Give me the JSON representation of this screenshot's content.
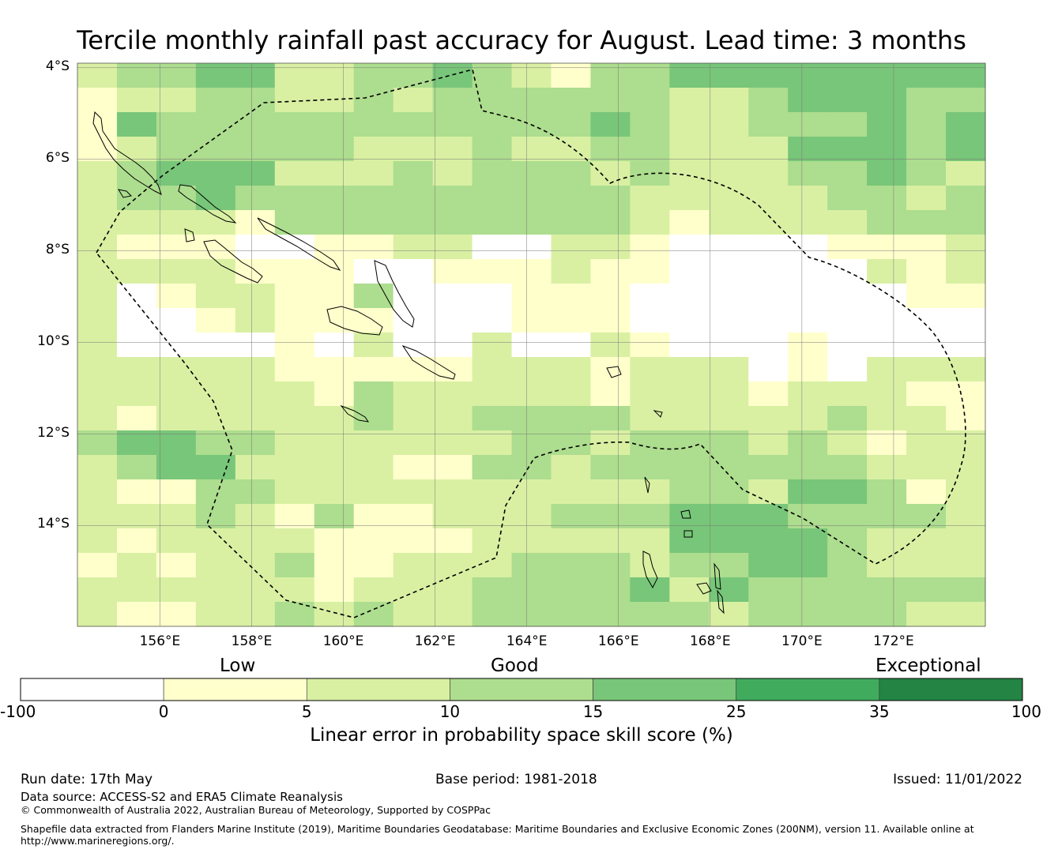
{
  "title": "Tercile monthly rainfall past accuracy for August. Lead time: 3 months",
  "map": {
    "lat_range": [
      -16.2,
      -3.9
    ],
    "lon_range": [
      154.2,
      174.0
    ],
    "lat_labels": [
      "4°S",
      "6°S",
      "8°S",
      "10°S",
      "12°S",
      "14°S"
    ],
    "lon_labels": [
      "156°E",
      "158°E",
      "160°E",
      "162°E",
      "164°E",
      "166°E",
      "168°E",
      "170°E",
      "172°E"
    ],
    "grid": true,
    "category_colors": [
      "#ffffff",
      "#ffffcc",
      "#d9f0a3",
      "#addd8e",
      "#78c679",
      "#41ab5d",
      "#238443"
    ],
    "legend_note": "grid cell value = colour category index (0=-100..0, 1=0..5, 2=5..10, 3=10..15, 4=15..25, 5=25..35, 6=35..100)",
    "skill_grid": [
      "23344223343213344444444",
      "12233223233333322344433",
      "14333333333334322333434",
      "12333332223223322244434",
      "23444222323332322233432",
      "23343333333333222223323",
      "22221333333333212222333",
      "21110011220022100001112",
      "22221110011121100000212",
      "20122113000111000000011",
      "20012111000111000000000",
      "20000102002002100010000",
      "22222111112221222010222",
      "22222213222221222122211",
      "21222223223333222223221",
      "34433222222332333232122",
      "23442222113323333333222",
      "21133222222222233244312",
      "22232131122233344433332",
      "21222211112222244443222",
      "12122311222333233443222",
      "22222212223333424333333",
      "21122323223333332333322"
    ],
    "islands": [
      "solomon-islands-choiseul",
      "solomon-islands-santa-isabel",
      "solomon-islands-new-georgia",
      "solomon-islands-malaita",
      "solomon-islands-guadalcanal",
      "solomon-islands-makira",
      "bougainville-island",
      "rennell-island",
      "santa-cruz-islands",
      "vanuatu-banks-islands",
      "vanuatu-espiritu-santo",
      "vanuatu-malekula"
    ],
    "eez_boundary": "solomon-islands-eez-dashed"
  },
  "legend": {
    "categories": [
      "Low",
      "Good",
      "Exceptional"
    ],
    "ticks": [
      "-100",
      "0",
      "5",
      "10",
      "15",
      "25",
      "35",
      "100"
    ],
    "colors": [
      "#ffffff",
      "#ffffcc",
      "#d9f0a3",
      "#addd8e",
      "#78c679",
      "#41ab5d",
      "#238443"
    ],
    "title": "Linear error in probability space skill score (%)"
  },
  "footer": {
    "run_date": "Run date: 17th May",
    "base_period": "Base period: 1981-2018",
    "issued": "Issued: 11/01/2022",
    "data_source": "Data source: ACCESS-S2 and ERA5 Climate Reanalysis",
    "copyright": "© Commonwealth of Australia 2022, Australian Bureau of Meteorology, Supported by COSPPac",
    "shapefile_line1": "Shapefile data extracted from Flanders Marine Institute (2019), Maritime Boundaries Geodatabase: Maritime Boundaries and Exclusive Economic Zones (200NM), version 11. Available online at",
    "shapefile_line2": "http://www.marineregions.org/."
  }
}
